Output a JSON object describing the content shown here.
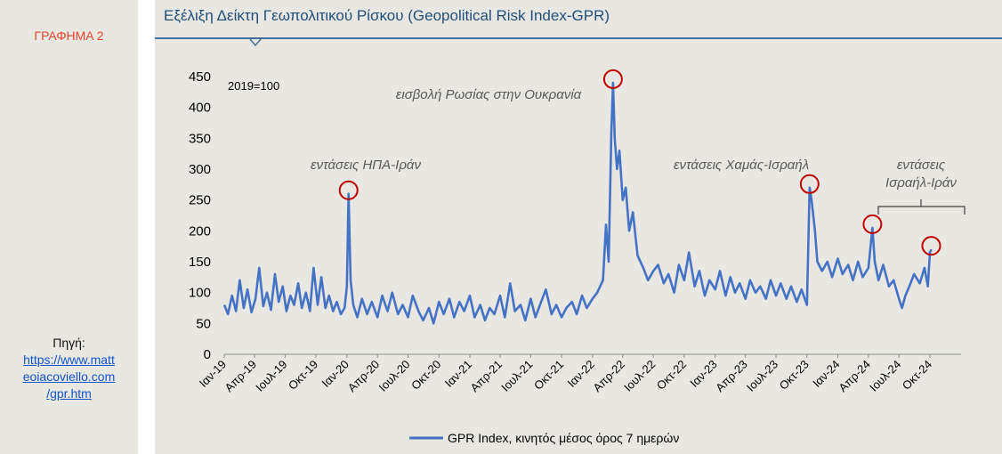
{
  "sidebar": {
    "figure_label": "ΓΡΑΦΗΜΑ 2",
    "source_label": "Πηγή:",
    "source_link_lines": [
      "https://www.matt",
      "eoiacoviello.com",
      "/gpr.htm"
    ]
  },
  "header": {
    "title": "Εξέλιξη Δείκτη Γεωπολιτικού Ρίσκου (Geopolitical Risk Index-GPR)"
  },
  "chart_data": {
    "type": "line",
    "base_note": "2019=100",
    "ylim": [
      0,
      450
    ],
    "yticks": [
      0,
      50,
      100,
      150,
      200,
      250,
      300,
      350,
      400,
      450
    ],
    "xlim": [
      "2019-01",
      "2024-12"
    ],
    "xtick_labels": [
      "Ιαν-19",
      "Απρ-19",
      "Ιουλ-19",
      "Οκτ-19",
      "Ιαν-20",
      "Απρ-20",
      "Ιουλ-20",
      "Οκτ-20",
      "Ιαν-21",
      "Απρ-21",
      "Ιουλ-21",
      "Οκτ-21",
      "Ιαν-22",
      "Απρ-22",
      "Ιουλ-22",
      "Οκτ-22",
      "Ιαν-23",
      "Απρ-23",
      "Ιουλ-23",
      "Οκτ-23",
      "Ιαν-24",
      "Απρ-24",
      "Ιουλ-24",
      "Οκτ-24"
    ],
    "series": [
      {
        "name": "GPR Index, κινητός μέσος όρος 7 ημερών",
        "color": "#4472c4",
        "points": [
          [
            "2019-01-01",
            80
          ],
          [
            "2019-01-12",
            65
          ],
          [
            "2019-01-24",
            95
          ],
          [
            "2019-02-05",
            70
          ],
          [
            "2019-02-16",
            120
          ],
          [
            "2019-02-28",
            75
          ],
          [
            "2019-03-11",
            105
          ],
          [
            "2019-03-23",
            68
          ],
          [
            "2019-04-04",
            90
          ],
          [
            "2019-04-15",
            140
          ],
          [
            "2019-04-27",
            78
          ],
          [
            "2019-05-08",
            100
          ],
          [
            "2019-05-20",
            72
          ],
          [
            "2019-06-01",
            130
          ],
          [
            "2019-06-12",
            85
          ],
          [
            "2019-06-24",
            110
          ],
          [
            "2019-07-05",
            70
          ],
          [
            "2019-07-17",
            95
          ],
          [
            "2019-07-28",
            80
          ],
          [
            "2019-08-09",
            115
          ],
          [
            "2019-08-20",
            75
          ],
          [
            "2019-09-01",
            100
          ],
          [
            "2019-09-13",
            70
          ],
          [
            "2019-09-24",
            140
          ],
          [
            "2019-10-06",
            80
          ],
          [
            "2019-10-17",
            125
          ],
          [
            "2019-10-29",
            75
          ],
          [
            "2019-11-09",
            95
          ],
          [
            "2019-11-21",
            70
          ],
          [
            "2019-12-02",
            85
          ],
          [
            "2019-12-14",
            65
          ],
          [
            "2019-12-25",
            75
          ],
          [
            "2020-01-01",
            110
          ],
          [
            "2020-01-06",
            260
          ],
          [
            "2020-01-12",
            120
          ],
          [
            "2020-01-20",
            80
          ],
          [
            "2020-02-01",
            60
          ],
          [
            "2020-02-15",
            90
          ],
          [
            "2020-03-01",
            65
          ],
          [
            "2020-03-15",
            85
          ],
          [
            "2020-04-01",
            60
          ],
          [
            "2020-04-15",
            95
          ],
          [
            "2020-05-01",
            70
          ],
          [
            "2020-05-15",
            100
          ],
          [
            "2020-06-01",
            65
          ],
          [
            "2020-06-15",
            80
          ],
          [
            "2020-07-01",
            60
          ],
          [
            "2020-07-15",
            95
          ],
          [
            "2020-08-01",
            70
          ],
          [
            "2020-08-15",
            55
          ],
          [
            "2020-09-01",
            75
          ],
          [
            "2020-09-15",
            50
          ],
          [
            "2020-10-01",
            85
          ],
          [
            "2020-10-15",
            65
          ],
          [
            "2020-11-01",
            90
          ],
          [
            "2020-11-15",
            60
          ],
          [
            "2020-12-01",
            85
          ],
          [
            "2020-12-15",
            70
          ],
          [
            "2021-01-01",
            95
          ],
          [
            "2021-01-15",
            60
          ],
          [
            "2021-02-01",
            80
          ],
          [
            "2021-02-15",
            55
          ],
          [
            "2021-03-01",
            75
          ],
          [
            "2021-03-15",
            65
          ],
          [
            "2021-04-01",
            95
          ],
          [
            "2021-04-15",
            60
          ],
          [
            "2021-05-01",
            115
          ],
          [
            "2021-05-15",
            70
          ],
          [
            "2021-06-01",
            80
          ],
          [
            "2021-06-15",
            55
          ],
          [
            "2021-07-01",
            90
          ],
          [
            "2021-07-15",
            60
          ],
          [
            "2021-08-01",
            85
          ],
          [
            "2021-08-15",
            105
          ],
          [
            "2021-09-01",
            65
          ],
          [
            "2021-09-15",
            80
          ],
          [
            "2021-10-01",
            60
          ],
          [
            "2021-10-15",
            75
          ],
          [
            "2021-11-01",
            85
          ],
          [
            "2021-11-15",
            65
          ],
          [
            "2021-12-01",
            95
          ],
          [
            "2021-12-15",
            75
          ],
          [
            "2022-01-01",
            90
          ],
          [
            "2022-01-15",
            100
          ],
          [
            "2022-02-01",
            120
          ],
          [
            "2022-02-10",
            210
          ],
          [
            "2022-02-18",
            150
          ],
          [
            "2022-02-26",
            360
          ],
          [
            "2022-03-03",
            440
          ],
          [
            "2022-03-08",
            350
          ],
          [
            "2022-03-15",
            300
          ],
          [
            "2022-03-22",
            330
          ],
          [
            "2022-04-01",
            250
          ],
          [
            "2022-04-10",
            270
          ],
          [
            "2022-04-20",
            200
          ],
          [
            "2022-05-01",
            230
          ],
          [
            "2022-05-15",
            160
          ],
          [
            "2022-06-01",
            140
          ],
          [
            "2022-06-15",
            120
          ],
          [
            "2022-07-01",
            135
          ],
          [
            "2022-07-15",
            145
          ],
          [
            "2022-08-01",
            115
          ],
          [
            "2022-08-15",
            130
          ],
          [
            "2022-09-01",
            100
          ],
          [
            "2022-09-15",
            145
          ],
          [
            "2022-10-01",
            120
          ],
          [
            "2022-10-15",
            165
          ],
          [
            "2022-11-01",
            110
          ],
          [
            "2022-11-15",
            135
          ],
          [
            "2022-12-01",
            95
          ],
          [
            "2022-12-15",
            120
          ],
          [
            "2023-01-01",
            105
          ],
          [
            "2023-01-15",
            135
          ],
          [
            "2023-02-01",
            95
          ],
          [
            "2023-02-15",
            125
          ],
          [
            "2023-03-01",
            100
          ],
          [
            "2023-03-15",
            115
          ],
          [
            "2023-04-01",
            90
          ],
          [
            "2023-04-15",
            120
          ],
          [
            "2023-05-01",
            100
          ],
          [
            "2023-05-15",
            110
          ],
          [
            "2023-06-01",
            90
          ],
          [
            "2023-06-15",
            120
          ],
          [
            "2023-07-01",
            95
          ],
          [
            "2023-07-15",
            115
          ],
          [
            "2023-08-01",
            90
          ],
          [
            "2023-08-15",
            110
          ],
          [
            "2023-09-01",
            85
          ],
          [
            "2023-09-15",
            105
          ],
          [
            "2023-10-01",
            80
          ],
          [
            "2023-10-09",
            270
          ],
          [
            "2023-10-15",
            250
          ],
          [
            "2023-10-25",
            200
          ],
          [
            "2023-11-01",
            150
          ],
          [
            "2023-11-15",
            135
          ],
          [
            "2023-12-01",
            150
          ],
          [
            "2023-12-15",
            125
          ],
          [
            "2024-01-01",
            155
          ],
          [
            "2024-01-15",
            130
          ],
          [
            "2024-02-01",
            145
          ],
          [
            "2024-02-15",
            120
          ],
          [
            "2024-03-01",
            150
          ],
          [
            "2024-03-15",
            125
          ],
          [
            "2024-04-01",
            140
          ],
          [
            "2024-04-13",
            205
          ],
          [
            "2024-04-20",
            150
          ],
          [
            "2024-05-01",
            120
          ],
          [
            "2024-05-15",
            145
          ],
          [
            "2024-06-01",
            110
          ],
          [
            "2024-06-15",
            120
          ],
          [
            "2024-07-01",
            90
          ],
          [
            "2024-07-10",
            75
          ],
          [
            "2024-07-20",
            95
          ],
          [
            "2024-08-01",
            110
          ],
          [
            "2024-08-15",
            130
          ],
          [
            "2024-09-01",
            115
          ],
          [
            "2024-09-15",
            140
          ],
          [
            "2024-09-25",
            110
          ],
          [
            "2024-10-01",
            165
          ],
          [
            "2024-10-05",
            170
          ]
        ]
      }
    ],
    "annotations": [
      {
        "text": "εντάσεις ΗΠΑ-Ιράν",
        "date": "2020-01-06",
        "value": 260
      },
      {
        "text": "εισβολή Ρωσίας στην Ουκρανία",
        "date": "2022-03-03",
        "value": 440
      },
      {
        "text": "εντάσεις Χαμάς-Ισραήλ",
        "date": "2023-10-09",
        "value": 270
      },
      {
        "text": "εντάσεις\nΙσραήλ-Ιράν",
        "markers": [
          [
            "2024-04-13",
            205
          ],
          [
            "2024-10-05",
            170
          ]
        ]
      }
    ],
    "marker_color": "#c00000",
    "grid": false,
    "legend_position": "bottom-center"
  }
}
